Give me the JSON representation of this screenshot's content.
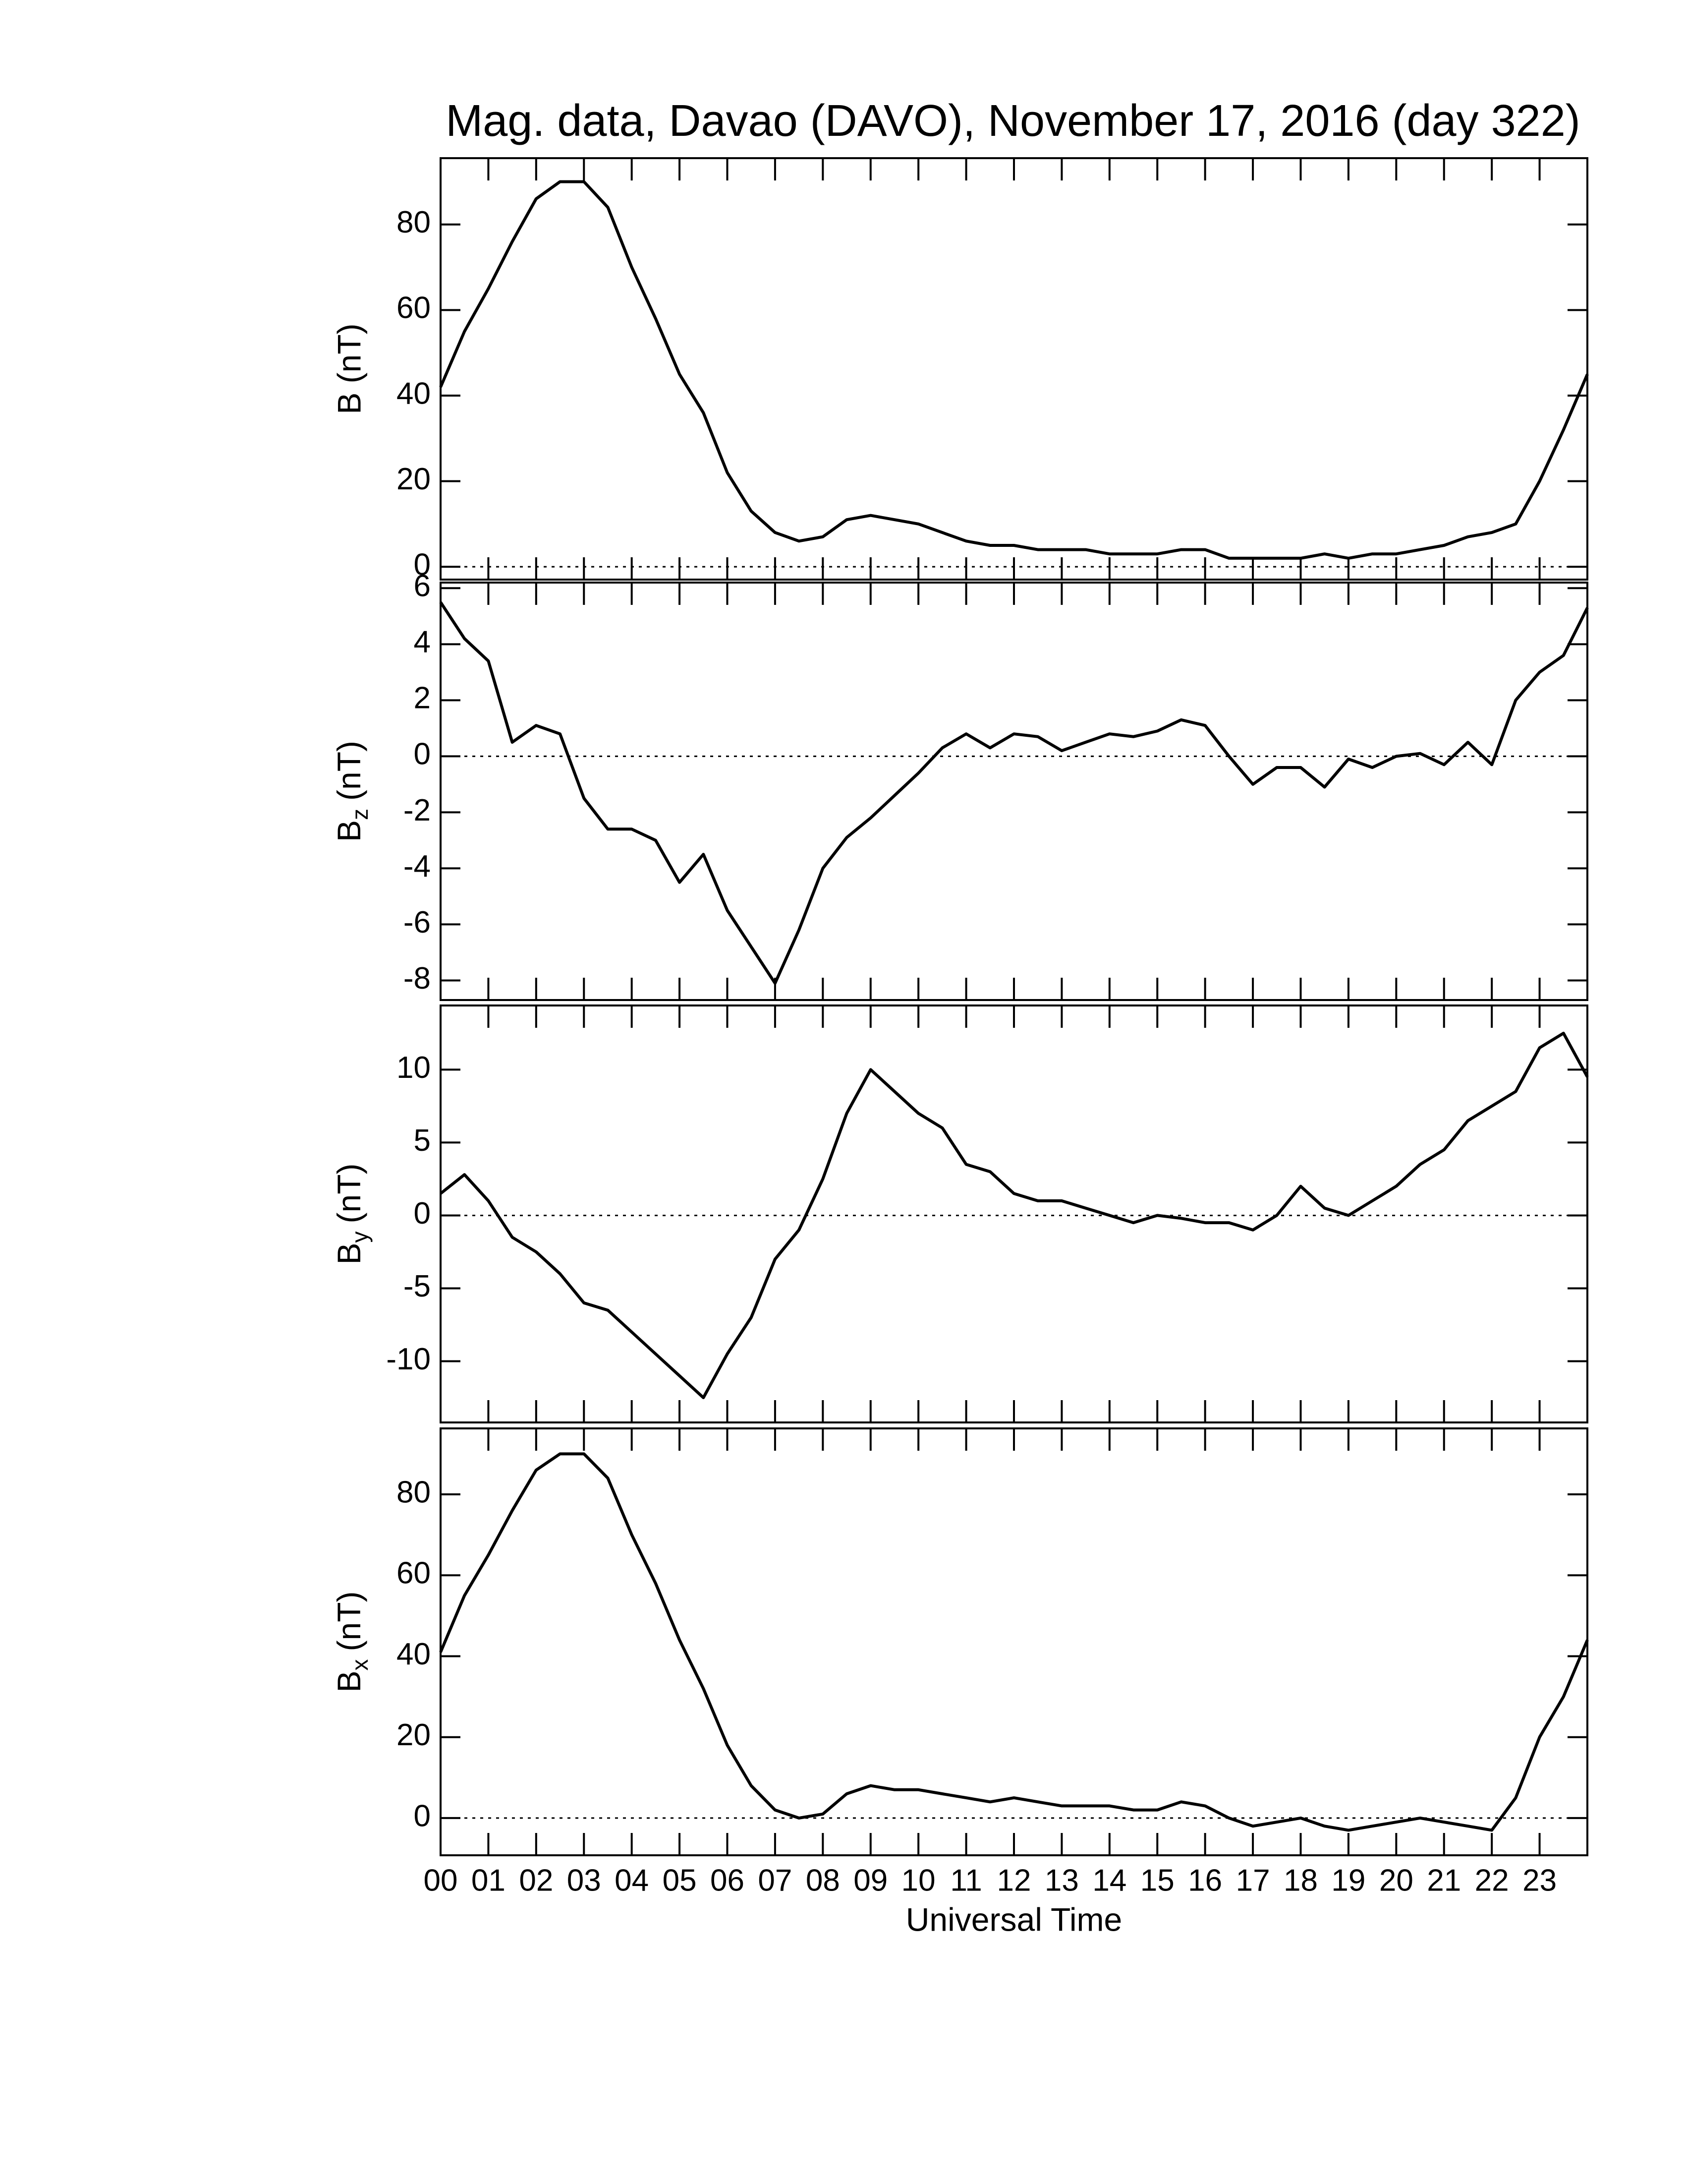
{
  "chart_data": [
    {
      "type": "line",
      "title": "Mag. data, Davao (DAVO), November 17, 2016 (day 322)",
      "ylabel": "B (nT)",
      "ylim": [
        -3,
        95.5
      ],
      "yticks": [
        0,
        20,
        40,
        60,
        80
      ],
      "zero_line": true,
      "x": [
        0,
        0.5,
        1,
        1.5,
        2,
        2.5,
        3,
        3.5,
        4,
        4.5,
        5,
        5.5,
        6,
        6.5,
        7,
        7.5,
        8,
        8.5,
        9,
        9.5,
        10,
        10.5,
        11,
        11.5,
        12,
        12.5,
        13,
        13.5,
        14,
        14.5,
        15,
        15.5,
        16,
        16.5,
        17,
        17.5,
        18,
        18.5,
        19,
        19.5,
        20,
        20.5,
        21,
        21.5,
        22,
        22.5,
        23,
        23.5,
        24
      ],
      "series": [
        {
          "color": "#000000",
          "values": [
            42,
            55,
            65,
            76,
            86,
            90,
            90,
            84,
            70,
            58,
            45,
            36,
            22,
            13,
            8,
            6,
            7,
            11,
            12,
            11,
            10,
            8,
            6,
            5,
            5,
            4,
            4,
            4,
            3,
            3,
            3,
            4,
            4,
            2,
            2,
            2,
            2,
            3,
            2,
            3,
            3,
            4,
            5,
            7,
            8,
            10,
            20,
            32,
            45
          ]
        }
      ]
    },
    {
      "type": "line",
      "ylabel": [
        "B",
        "z",
        "(nT)"
      ],
      "ylim": [
        -8.7,
        6.2
      ],
      "yticks": [
        -8,
        -6,
        -4,
        -2,
        0,
        2,
        4,
        6
      ],
      "zero_line": true,
      "x": [
        0,
        0.5,
        1,
        1.5,
        2,
        2.5,
        3,
        3.5,
        4,
        4.5,
        5,
        5.5,
        6,
        6.5,
        7,
        7.5,
        8,
        8.5,
        9,
        9.5,
        10,
        10.5,
        11,
        11.5,
        12,
        12.5,
        13,
        13.5,
        14,
        14.5,
        15,
        15.5,
        16,
        16.5,
        17,
        17.5,
        18,
        18.5,
        19,
        19.5,
        20,
        20.5,
        21,
        21.5,
        22,
        22.5,
        23,
        23.5,
        24
      ],
      "series": [
        {
          "color": "#000000",
          "values": [
            5.5,
            4.2,
            3.4,
            0.5,
            1.1,
            0.8,
            -1.5,
            -2.6,
            -2.6,
            -3.0,
            -4.5,
            -3.5,
            -5.5,
            -6.8,
            -8.1,
            -6.2,
            -4.0,
            -2.9,
            -2.2,
            -1.4,
            -0.6,
            0.3,
            0.8,
            0.3,
            0.8,
            0.7,
            0.2,
            0.5,
            0.8,
            0.7,
            0.9,
            1.3,
            1.1,
            0,
            -1.0,
            -0.4,
            -0.4,
            -1.1,
            -0.1,
            -0.4,
            0.0,
            0.1,
            -0.3,
            0.5,
            -0.3,
            2.0,
            3.0,
            3.6,
            5.3
          ]
        }
      ]
    },
    {
      "type": "line",
      "ylabel": [
        "B",
        "y",
        "(nT)"
      ],
      "ylim": [
        -14.2,
        14.4
      ],
      "yticks": [
        -10,
        -5,
        0,
        5,
        10
      ],
      "zero_line": true,
      "x": [
        0,
        0.5,
        1,
        1.5,
        2,
        2.5,
        3,
        3.5,
        4,
        4.5,
        5,
        5.5,
        6,
        6.5,
        7,
        7.5,
        8,
        8.5,
        9,
        9.5,
        10,
        10.5,
        11,
        11.5,
        12,
        12.5,
        13,
        13.5,
        14,
        14.5,
        15,
        15.5,
        16,
        16.5,
        17,
        17.5,
        18,
        18.5,
        19,
        19.5,
        20,
        20.5,
        21,
        21.5,
        22,
        22.5,
        23,
        23.5,
        24
      ],
      "series": [
        {
          "color": "#000000",
          "values": [
            1.5,
            2.8,
            1.0,
            -1.5,
            -2.5,
            -4.0,
            -6,
            -6.5,
            -8,
            -9.5,
            -11,
            -12.5,
            -9.5,
            -7,
            -3,
            -1,
            2.5,
            7,
            10,
            8.5,
            7,
            6,
            3.5,
            3,
            1.5,
            1,
            1,
            0.5,
            0,
            -0.5,
            0,
            -0.2,
            -0.5,
            -0.5,
            -1,
            0,
            2,
            0.5,
            0,
            1,
            2,
            3.5,
            4.5,
            6.5,
            7.5,
            8.5,
            11.5,
            12.5,
            9.5
          ]
        }
      ]
    },
    {
      "type": "line",
      "ylabel": [
        "B",
        "x",
        "(nT)"
      ],
      "xlabel": "Universal Time",
      "ylim": [
        -9.2,
        96.3
      ],
      "yticks": [
        0,
        20,
        40,
        60,
        80
      ],
      "zero_line": true,
      "xlim": [
        0,
        24
      ],
      "xticks": [
        {
          "value": 0,
          "label": "00"
        },
        {
          "value": 1,
          "label": "01"
        },
        {
          "value": 2,
          "label": "02"
        },
        {
          "value": 3,
          "label": "03"
        },
        {
          "value": 4,
          "label": "04"
        },
        {
          "value": 5,
          "label": "05"
        },
        {
          "value": 6,
          "label": "06"
        },
        {
          "value": 7,
          "label": "07"
        },
        {
          "value": 8,
          "label": "08"
        },
        {
          "value": 9,
          "label": "09"
        },
        10,
        11,
        12,
        13,
        14,
        15,
        16,
        17,
        18,
        19,
        20,
        21,
        22,
        23
      ],
      "x": [
        0,
        0.5,
        1,
        1.5,
        2,
        2.5,
        3,
        3.5,
        4,
        4.5,
        5,
        5.5,
        6,
        6.5,
        7,
        7.5,
        8,
        8.5,
        9,
        9.5,
        10,
        10.5,
        11,
        11.5,
        12,
        12.5,
        13,
        13.5,
        14,
        14.5,
        15,
        15.5,
        16,
        16.5,
        17,
        17.5,
        18,
        18.5,
        19,
        19.5,
        20,
        20.5,
        21,
        21.5,
        22,
        22.5,
        23,
        23.5,
        24
      ],
      "series": [
        {
          "color": "#000000",
          "values": [
            41,
            55,
            65,
            76,
            86,
            90,
            90,
            84,
            70,
            58,
            44,
            32,
            18,
            8,
            2,
            0,
            1,
            6,
            8,
            7,
            7,
            6,
            5,
            4,
            5,
            4,
            3,
            3,
            3,
            2,
            2,
            4,
            3,
            0,
            -2,
            -1,
            0,
            -2,
            -3,
            -2,
            -1,
            0,
            -1,
            -2,
            -3,
            5,
            20,
            30,
            44
          ]
        }
      ]
    }
  ]
}
